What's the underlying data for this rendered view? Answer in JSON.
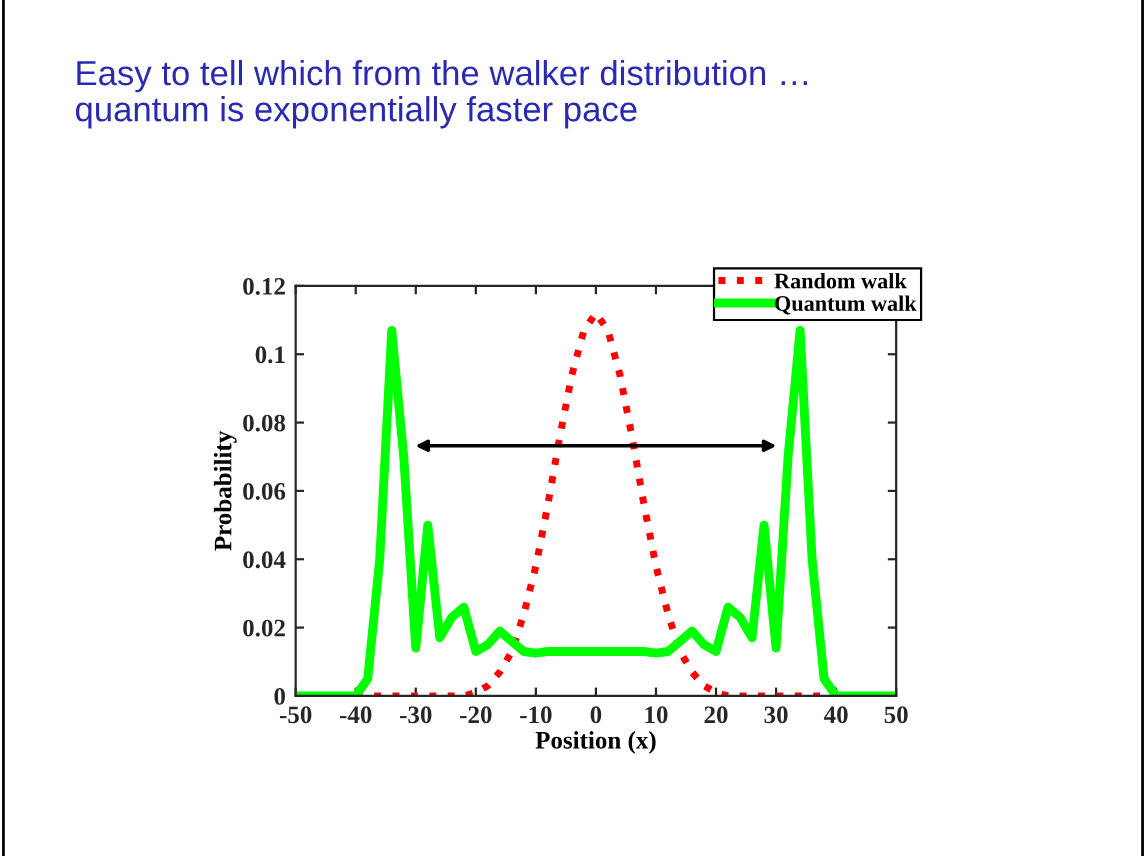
{
  "chart_data": {
    "type": "line",
    "title": "Easy to tell which from the walker distribution …\nquantum is exponentially faster pace",
    "xlabel": "Position (x)",
    "ylabel": "Probability",
    "xlim": [
      -50,
      50
    ],
    "xticks": [
      -50,
      -40,
      -30,
      -20,
      -10,
      0,
      10,
      20,
      30,
      40,
      50
    ],
    "ylim": [
      0,
      0.12
    ],
    "yticks": [
      0,
      0.02,
      0.04,
      0.06,
      0.08,
      0.1,
      0.12
    ],
    "grid": false,
    "legend": "top right",
    "marker": "none",
    "series": [
      {
        "name": "Random walk",
        "color": "#ff0000",
        "line_style": "dotted",
        "x": [
          -40,
          -38,
          -36,
          -34,
          -32,
          -30,
          -28,
          -26,
          -24,
          -22,
          -20,
          -18,
          -16,
          -14,
          -12,
          -10,
          -8,
          -6,
          -4,
          -2,
          0,
          2,
          4,
          6,
          8,
          10,
          12,
          14,
          16,
          18,
          20,
          22,
          24,
          26,
          28,
          30,
          32,
          34,
          36,
          38,
          40
        ],
        "values": [
          0,
          0,
          0,
          0,
          0,
          0,
          0,
          0,
          0,
          0,
          0.001,
          0.003,
          0.007,
          0.013,
          0.024,
          0.038,
          0.056,
          0.076,
          0.094,
          0.107,
          0.112,
          0.107,
          0.094,
          0.076,
          0.056,
          0.038,
          0.024,
          0.013,
          0.007,
          0.003,
          0.001,
          0,
          0,
          0,
          0,
          0,
          0,
          0,
          0,
          0,
          0
        ]
      },
      {
        "name": "Quantum walk",
        "color": "#00ff00",
        "line_style": "solid",
        "x": [
          -50,
          -48,
          -46,
          -44,
          -42,
          -40,
          -38,
          -36,
          -34,
          -32,
          -30,
          -28,
          -26,
          -24,
          -22,
          -20,
          -18,
          -16,
          -14,
          -12,
          -10,
          -8,
          -6,
          -4,
          -2,
          0,
          2,
          4,
          6,
          8,
          10,
          12,
          14,
          16,
          18,
          20,
          22,
          24,
          26,
          28,
          30,
          32,
          34,
          36,
          38,
          40,
          42,
          44,
          46,
          48,
          50
        ],
        "values": [
          0,
          0,
          0,
          0,
          0,
          0,
          0.005,
          0.04,
          0.107,
          0.07,
          0.014,
          0.05,
          0.017,
          0.023,
          0.026,
          0.013,
          0.015,
          0.019,
          0.016,
          0.013,
          0.0125,
          0.013,
          0.013,
          0.013,
          0.013,
          0.013,
          0.013,
          0.013,
          0.013,
          0.013,
          0.0125,
          0.013,
          0.016,
          0.019,
          0.015,
          0.013,
          0.026,
          0.023,
          0.017,
          0.05,
          0.014,
          0.07,
          0.107,
          0.04,
          0.005,
          0,
          0,
          0,
          0,
          0,
          0
        ]
      }
    ]
  }
}
